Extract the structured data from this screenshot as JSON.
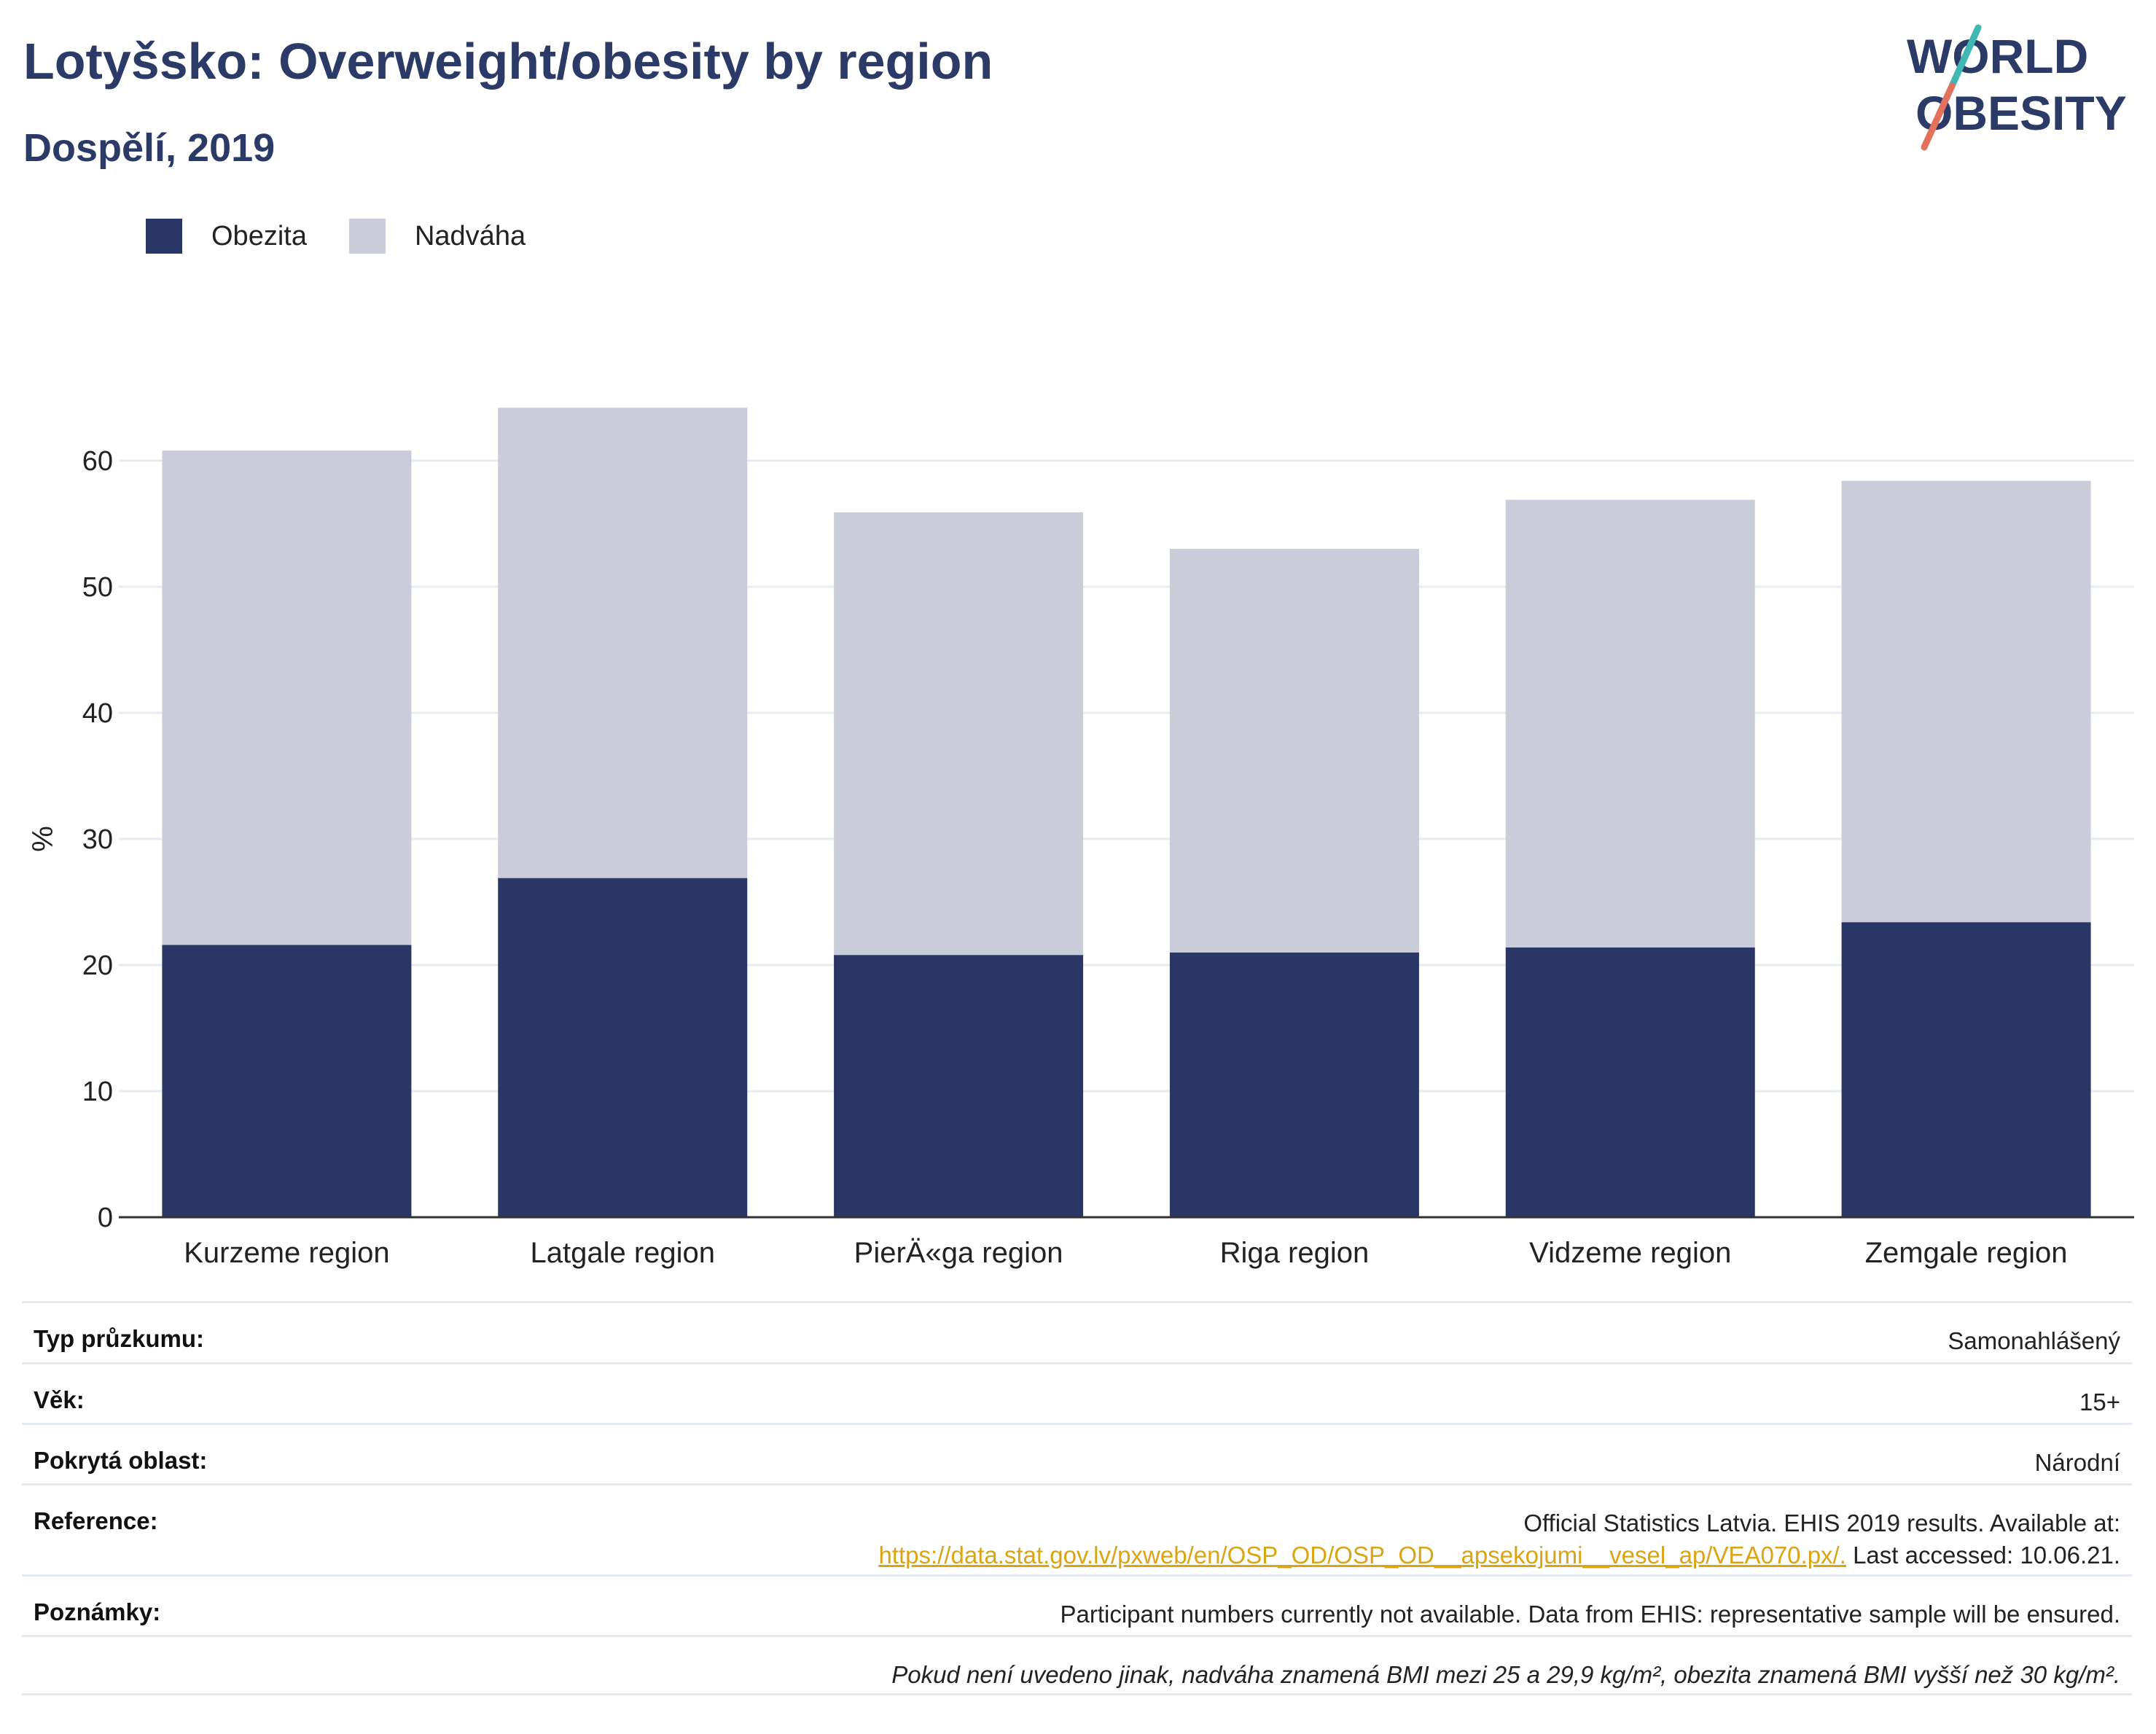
{
  "header": {
    "title": "Lotyšsko: Overweight/obesity by region",
    "subtitle": "Dospělí, 2019"
  },
  "logo": {
    "line1": "WORLD",
    "line2": "OBESITY"
  },
  "colors": {
    "obesity": "#2a3665",
    "overweight": "#cacdd9",
    "title": "#2b3a67",
    "logo_teal": "#3fb8b3",
    "logo_red": "#e2725b",
    "link": "#d9a514"
  },
  "chart_data": {
    "type": "bar",
    "stacked": true,
    "categories": [
      "Kurzeme region",
      "Latgale region",
      "PierÄ«ga region",
      "Riga region",
      "Vidzeme region",
      "Zemgale region"
    ],
    "series": [
      {
        "name": "Obezita",
        "values": [
          21.6,
          26.9,
          20.8,
          21.0,
          21.4,
          23.4
        ]
      },
      {
        "name": "Nadváha",
        "values": [
          39.2,
          37.3,
          35.1,
          32.0,
          35.5,
          35.0
        ]
      }
    ],
    "ylabel": "%",
    "ylim": [
      0,
      65
    ],
    "yticks": [
      0,
      10,
      20,
      30,
      40,
      50,
      60
    ],
    "grid": true,
    "legend_position": "top-left"
  },
  "info": {
    "survey_type": {
      "label": "Typ průzkumu:",
      "value": "Samonahlášený"
    },
    "age": {
      "label": "Věk:",
      "value": "15+"
    },
    "coverage": {
      "label": "Pokrytá oblast:",
      "value": "Národní"
    },
    "reference": {
      "label": "Reference:",
      "text1": "Official Statistics Latvia. EHIS 2019 results. Available at:",
      "link": "https://data.stat.gov.lv/pxweb/en/OSP_OD/OSP_OD__apsekojumi__vesel_ap/VEA070.px/.",
      "text2": " Last accessed: 10.06.21."
    },
    "notes": {
      "label": "Poznámky:",
      "value": "Participant numbers currently not available. Data from EHIS: representative sample will be ensured."
    },
    "footnote": "Pokud není uvedeno jinak, nadváha znamená BMI mezi 25 a 29,9 kg/m², obezita znamená BMI vyšší než 30 kg/m²."
  }
}
